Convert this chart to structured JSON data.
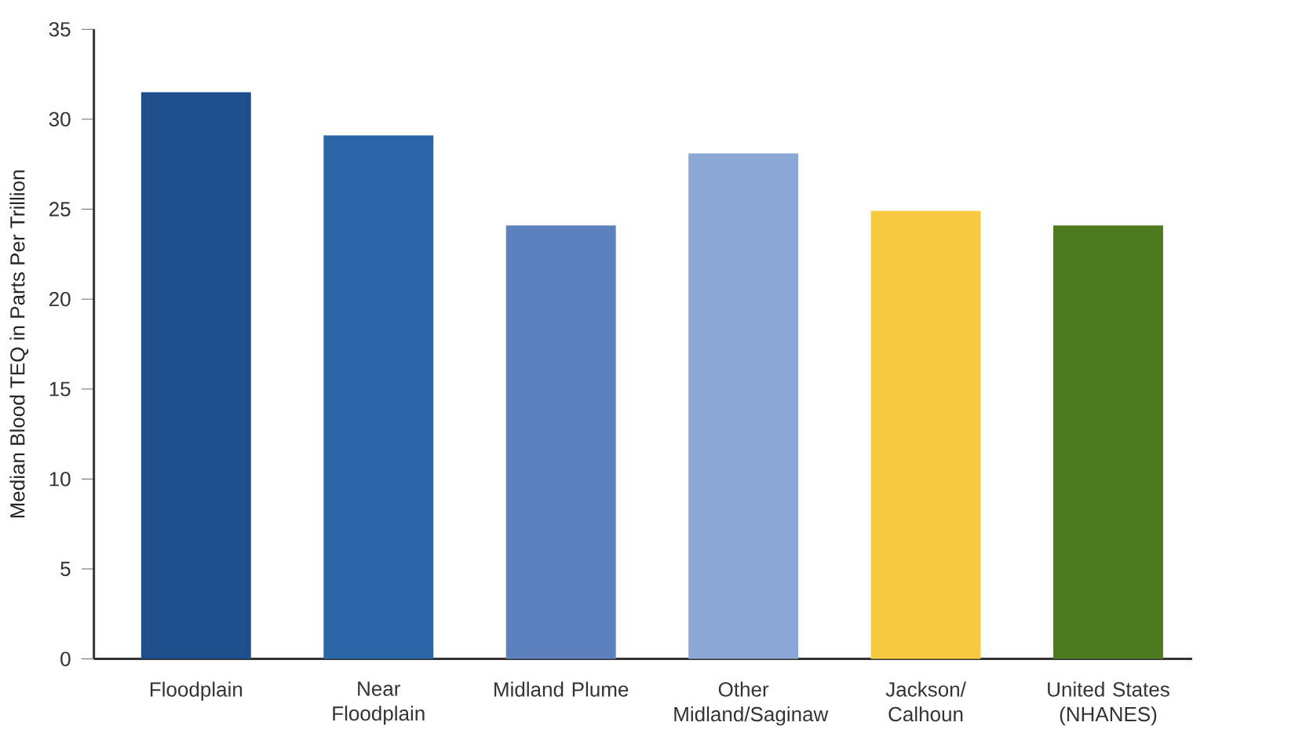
{
  "chart_data": {
    "type": "bar",
    "ylabel": "Median Blood TEQ in Parts Per Trillion",
    "categories": [
      "Floodplain",
      "Near Floodplain",
      "Midland Plume",
      "Other Midland/Saginaw",
      "Jackson/ Calhoun",
      "United States (NHANES)"
    ],
    "values": [
      31.5,
      29.1,
      24.1,
      28.1,
      24.9,
      24.1
    ],
    "colors": [
      "#1f4e8c",
      "#2b66a8",
      "#5b82bf",
      "#8ba7d5",
      "#f6c940",
      "#4b7a1f"
    ],
    "ylim": [
      0,
      35
    ],
    "yticks": [
      0,
      5,
      10,
      15,
      20,
      25,
      30,
      35
    ],
    "grid": false
  }
}
